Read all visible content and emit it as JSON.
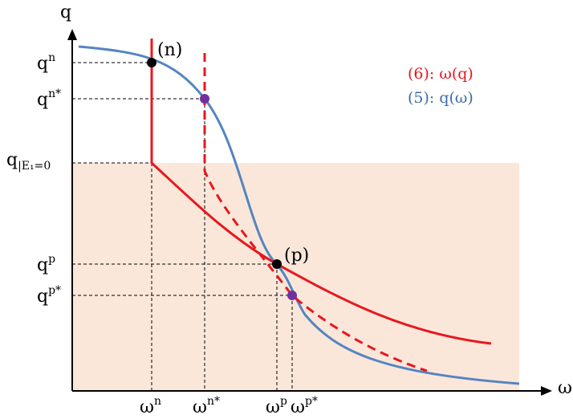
{
  "axes": {
    "y_axis_label": "q",
    "x_axis_label": "ω"
  },
  "y_ticks": {
    "qn": {
      "base": "q",
      "sup": "n"
    },
    "qn_star": {
      "base": "q",
      "sup": "n*"
    },
    "q_e1": {
      "base": "q",
      "sub": "|E₁=0"
    },
    "qp": {
      "base": "q",
      "sup": "p"
    },
    "qp_star": {
      "base": "q",
      "sup": "p*"
    }
  },
  "x_ticks": {
    "wn": {
      "base": "ω",
      "sup": "n"
    },
    "wn_star": {
      "base": "ω",
      "sup": "n*"
    },
    "wp": {
      "base": "ω",
      "sup": "p"
    },
    "wp_star": {
      "base": "ω",
      "sup": "p*"
    }
  },
  "points": {
    "n_label": "(n)",
    "p_label": "(p)"
  },
  "legend": {
    "red": "(6): ω(q)",
    "blue": "(5): q(ω)"
  },
  "colors": {
    "red": "#e8171f",
    "blue": "#5585c0",
    "shade": "#fbe7da",
    "black": "#000000",
    "purple": "#7030a0"
  }
}
